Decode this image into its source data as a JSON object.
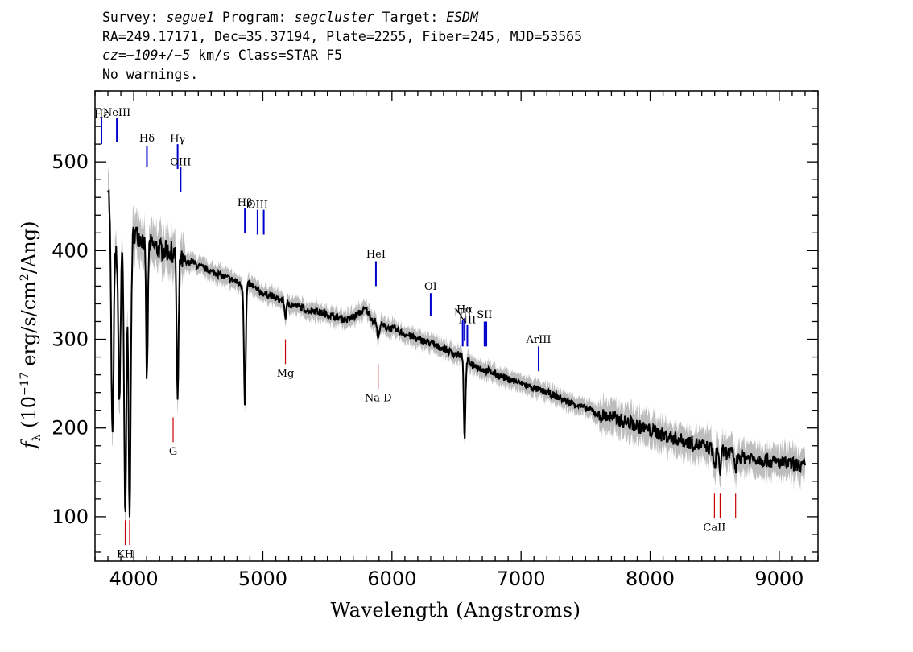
{
  "header": {
    "line1": {
      "survey_label": "Survey: ",
      "survey": "segue1",
      "program_label": " Program: ",
      "program": "segcluster",
      "target_label": " Target: ",
      "target": "ESDM"
    },
    "line2": "RA=249.17171, Dec=35.37194, Plate=2255, Fiber=245, MJD=53565",
    "line3": {
      "cz": "cz=−109+/−5",
      "rest": " km/s Class=STAR F5"
    },
    "line4": "No warnings."
  },
  "colors": {
    "spectrum": "#000000",
    "error_band": "#bdbdbd",
    "emission_line": "#0000cc",
    "absorption_line": "#cc0000"
  },
  "chart_data": {
    "type": "line",
    "xlabel": "Wavelength (Angstroms)",
    "ylabel_parts": {
      "f": "f",
      "sub": "λ",
      "open": " (10",
      "exp": "−17",
      "mid": " erg/s/cm",
      "exp2": "2",
      "close": "/Ang)"
    },
    "xlim": [
      3700,
      9300
    ],
    "ylim": [
      50,
      580
    ],
    "x_ticks": [
      4000,
      5000,
      6000,
      7000,
      8000,
      9000
    ],
    "y_ticks": [
      100,
      200,
      300,
      400,
      500
    ],
    "x_tick_labels": [
      "4000",
      "5000",
      "6000",
      "7000",
      "8000",
      "9000"
    ],
    "y_tick_labels": [
      "100",
      "200",
      "300",
      "400",
      "500"
    ],
    "series": [
      {
        "x": [
          3800,
          3830,
          3860,
          3880,
          3900,
          3920,
          3950,
          3980,
          4000,
          4050,
          4100,
          4150,
          4200,
          4250,
          4300,
          4350,
          4400,
          4450,
          4500,
          4550,
          4600,
          4650,
          4700,
          4750,
          4800,
          4850,
          4900,
          4950,
          5000,
          5050,
          5100,
          5150,
          5200,
          5250,
          5300,
          5350,
          5400,
          5450,
          5500,
          5550,
          5600,
          5650,
          5700,
          5750,
          5800,
          5850,
          5900,
          5950,
          6000,
          6050,
          6100,
          6150,
          6200,
          6250,
          6300,
          6350,
          6400,
          6450,
          6500,
          6540,
          6600,
          6650,
          6700,
          6750,
          6800,
          6850,
          6900,
          6950,
          7000,
          7050,
          7100,
          7150,
          7200,
          7250,
          7300,
          7350,
          7400,
          7450,
          7500,
          7550,
          7600,
          7650,
          7700,
          7750,
          7800,
          7850,
          7900,
          7950,
          8000,
          8050,
          8100,
          8150,
          8200,
          8250,
          8300,
          8350,
          8400,
          8450,
          8500,
          8550,
          8600,
          8650,
          8700,
          8750,
          8800,
          8850,
          8900,
          8950,
          9000,
          9050,
          9100,
          9150,
          9200
        ],
        "y": [
          480,
          420,
          400,
          410,
          420,
          425,
          420,
          415,
          420,
          415,
          410,
          405,
          402,
          400,
          398,
          392,
          385,
          388,
          382,
          380,
          376,
          374,
          370,
          368,
          364,
          360,
          362,
          356,
          352,
          350,
          346,
          344,
          340,
          338,
          336,
          332,
          333,
          330,
          328,
          326,
          324,
          322,
          325,
          330,
          334,
          322,
          318,
          314,
          312,
          309,
          306,
          303,
          300,
          298,
          296,
          292,
          290,
          286,
          283,
          282,
          274,
          270,
          266,
          264,
          261,
          258,
          255,
          253,
          250,
          248,
          245,
          242,
          240,
          237,
          234,
          230,
          228,
          225,
          222,
          220,
          214,
          214,
          212,
          210,
          207,
          205,
          202,
          200,
          197,
          195,
          192,
          190,
          188,
          186,
          184,
          182,
          180,
          178,
          176,
          174,
          172,
          170,
          168,
          167,
          166,
          165,
          164,
          162,
          161,
          160,
          159,
          158,
          157
        ],
        "absorption": [
          {
            "x": 3835,
            "y": 190
          },
          {
            "x": 3889,
            "y": 230
          },
          {
            "x": 3934,
            "y": 95
          },
          {
            "x": 3968,
            "y": 110
          },
          {
            "x": 4102,
            "y": 255
          },
          {
            "x": 4340,
            "y": 228
          },
          {
            "x": 4861,
            "y": 225
          },
          {
            "x": 5175,
            "y": 326
          },
          {
            "x": 5893,
            "y": 300
          },
          {
            "x": 6563,
            "y": 190
          },
          {
            "x": 8498,
            "y": 152
          },
          {
            "x": 8542,
            "y": 150
          },
          {
            "x": 8662,
            "y": 152
          }
        ]
      }
    ],
    "line_markers": [
      {
        "label": "Hε",
        "x": 3750,
        "y_top": 550,
        "y_bottom": 520,
        "color": "#0000cc",
        "label_y": 550
      },
      {
        "label": "NeIII",
        "x": 3869,
        "y_top": 550,
        "y_bottom": 522,
        "color": "#0000cc",
        "label_y": 552
      },
      {
        "label": "Hδ",
        "x": 4102,
        "y_top": 518,
        "y_bottom": 494,
        "color": "#0000cc",
        "label_y": 523
      },
      {
        "label": "Hγ",
        "x": 4340,
        "y_top": 520,
        "y_bottom": 492,
        "color": "#0000cc",
        "label_y": 522
      },
      {
        "label": "OIII",
        "x": 4363,
        "y_top": 494,
        "y_bottom": 466,
        "color": "#0000cc",
        "label_y": 496
      },
      {
        "label": "Hβ",
        "x": 4861,
        "y_top": 448,
        "y_bottom": 420,
        "color": "#0000cc",
        "label_y": 450
      },
      {
        "label": "OIII",
        "x": 4959,
        "y_top": 446,
        "y_bottom": 418,
        "color": "#0000cc",
        "label_y": 448
      },
      {
        "label": "",
        "x": 5007,
        "y_top": 446,
        "y_bottom": 418,
        "color": "#0000cc",
        "label_y": 0
      },
      {
        "label": "HeI",
        "x": 5876,
        "y_top": 388,
        "y_bottom": 360,
        "color": "#0000cc",
        "label_y": 392
      },
      {
        "label": "OI",
        "x": 6300,
        "y_top": 352,
        "y_bottom": 326,
        "color": "#0000cc",
        "label_y": 356
      },
      {
        "label": "NII",
        "x": 6548,
        "y_top": 322,
        "y_bottom": 292,
        "color": "#0000cc",
        "label_y": 326
      },
      {
        "label": "Hα",
        "x": 6563,
        "y_top": 324,
        "y_bottom": 298,
        "color": "#0000cc",
        "label_y": 330
      },
      {
        "label": "NII",
        "x": 6584,
        "y_top": 316,
        "y_bottom": 292,
        "color": "#0000cc",
        "label_y": 318
      },
      {
        "label": "SII",
        "x": 6717,
        "y_top": 320,
        "y_bottom": 292,
        "color": "#0000cc",
        "label_y": 324
      },
      {
        "label": "",
        "x": 6731,
        "y_top": 320,
        "y_bottom": 292,
        "color": "#0000cc",
        "label_y": 0
      },
      {
        "label": "ArIII",
        "x": 7136,
        "y_top": 292,
        "y_bottom": 264,
        "color": "#0000cc",
        "label_y": 296
      },
      {
        "label": "KH",
        "x": 3934,
        "y_top": 96,
        "y_bottom": 68,
        "color": "#cc0000",
        "label_y": 54
      },
      {
        "label": "",
        "x": 3968,
        "y_top": 96,
        "y_bottom": 68,
        "color": "#cc0000",
        "label_y": 0
      },
      {
        "label": "G",
        "x": 4305,
        "y_top": 212,
        "y_bottom": 184,
        "color": "#cc0000",
        "label_y": 170
      },
      {
        "label": "Mg",
        "x": 5175,
        "y_top": 300,
        "y_bottom": 272,
        "color": "#cc0000",
        "label_y": 258
      },
      {
        "label": "Na D",
        "x": 5893,
        "y_top": 272,
        "y_bottom": 244,
        "color": "#cc0000",
        "label_y": 230
      },
      {
        "label": "CaII",
        "x": 8498,
        "y_top": 126,
        "y_bottom": 98,
        "color": "#cc0000",
        "label_y": 84
      },
      {
        "label": "",
        "x": 8542,
        "y_top": 126,
        "y_bottom": 98,
        "color": "#cc0000",
        "label_y": 0
      },
      {
        "label": "",
        "x": 8662,
        "y_top": 126,
        "y_bottom": 98,
        "color": "#cc0000",
        "label_y": 0
      }
    ]
  }
}
